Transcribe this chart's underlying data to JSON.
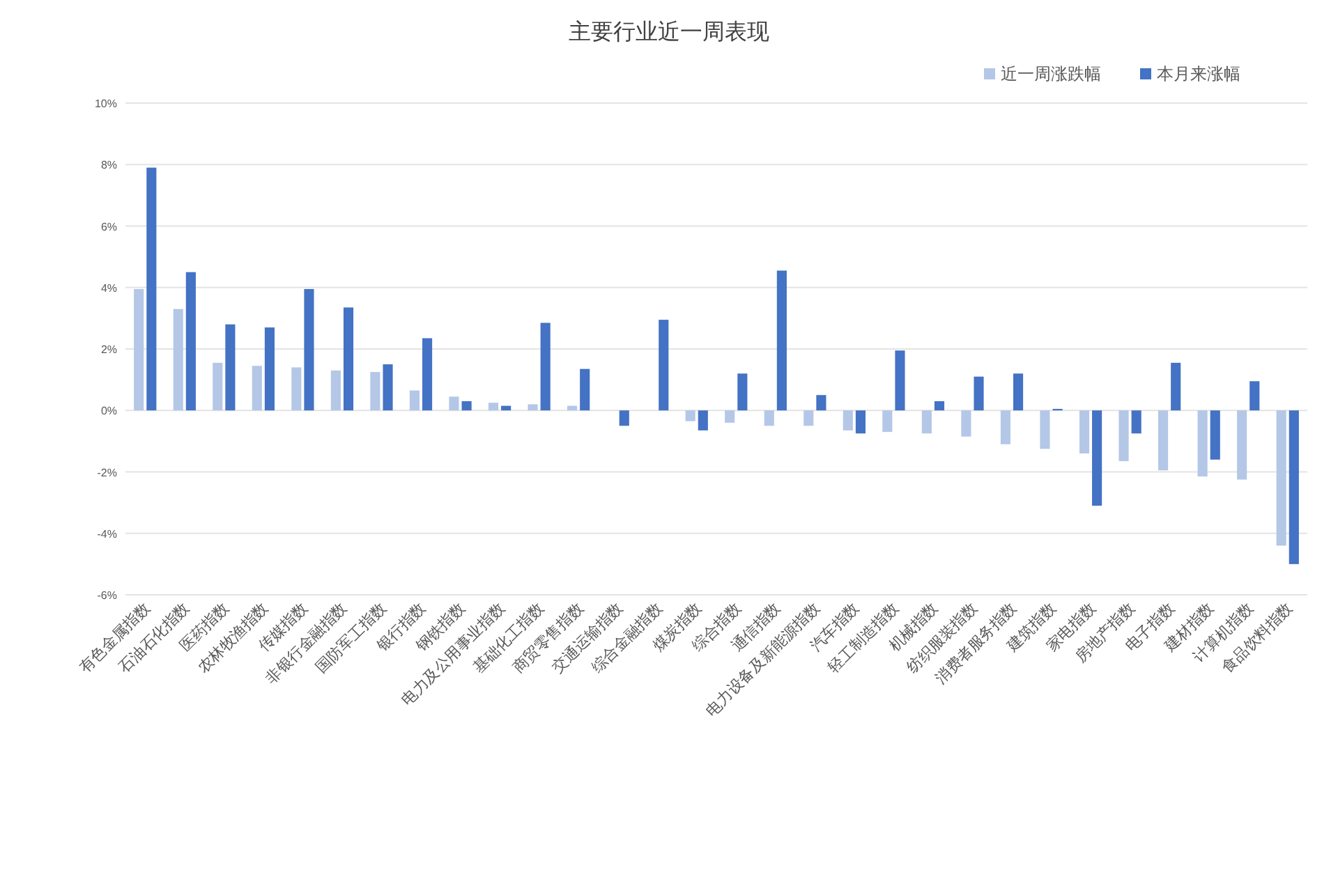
{
  "chart_data": {
    "type": "bar",
    "title": "主要行业近一周表现",
    "categories": [
      "有色金属指数",
      "石油石化指数",
      "医药指数",
      "农林牧渔指数",
      "传媒指数",
      "非银行金融指数",
      "国防军工指数",
      "银行指数",
      "钢铁指数",
      "电力及公用事业指数",
      "基础化工指数",
      "商贸零售指数",
      "交通运输指数",
      "综合金融指数",
      "煤炭指数",
      "综合指数",
      "通信指数",
      "电力设备及新能源指数",
      "汽车指数",
      "轻工制造指数",
      "机械指数",
      "纺织服装指数",
      "消费者服务指数",
      "建筑指数",
      "家电指数",
      "房地产指数",
      "电子指数",
      "建材指数",
      "计算机指数",
      "食品饮料指数"
    ],
    "series": [
      {
        "name": "近一周涨跌幅",
        "color": "#b4c7e7",
        "values": [
          3.95,
          3.3,
          1.55,
          1.45,
          1.4,
          1.3,
          1.25,
          0.65,
          0.45,
          0.25,
          0.2,
          0.15,
          null,
          null,
          -0.35,
          -0.4,
          -0.5,
          -0.5,
          -0.65,
          -0.7,
          -0.75,
          -0.85,
          -1.1,
          -1.25,
          -1.4,
          -1.65,
          -1.95,
          -2.15,
          -2.25,
          -4.4
        ]
      },
      {
        "name": "本月来涨幅",
        "color": "#4472c4",
        "values": [
          7.9,
          4.5,
          2.8,
          2.7,
          3.95,
          3.35,
          1.5,
          2.35,
          0.3,
          0.15,
          2.85,
          1.35,
          -0.5,
          2.95,
          -0.65,
          1.2,
          4.55,
          0.5,
          -0.75,
          1.95,
          0.3,
          1.1,
          1.2,
          0.05,
          -3.1,
          -0.75,
          1.55,
          -1.6,
          0.95,
          -5.0
        ]
      }
    ],
    "ylim": [
      -6,
      10
    ],
    "yticks": [
      {
        "value": -6,
        "label": "-6%"
      },
      {
        "value": -4,
        "label": "-4%"
      },
      {
        "value": -2,
        "label": "-2%"
      },
      {
        "value": 0,
        "label": "0%"
      },
      {
        "value": 2,
        "label": "2%"
      },
      {
        "value": 4,
        "label": "4%"
      },
      {
        "value": 6,
        "label": "6%"
      },
      {
        "value": 8,
        "label": "8%"
      },
      {
        "value": 10,
        "label": "10%"
      }
    ],
    "grid": "y",
    "legend": "top right"
  }
}
